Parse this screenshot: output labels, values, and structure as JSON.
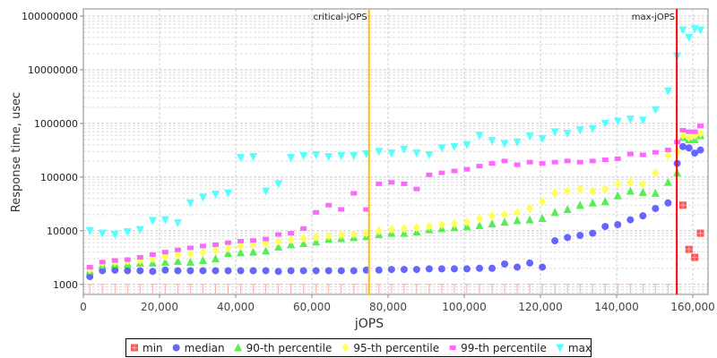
{
  "chart_data": {
    "type": "scatter",
    "title": "",
    "xlabel": "jOPS",
    "ylabel": "Response time, usec",
    "xscale": "linear",
    "yscale": "log",
    "xlim": [
      0,
      164000
    ],
    "ylim": [
      650,
      136000000
    ],
    "x_ticks": [
      0,
      20000,
      40000,
      60000,
      80000,
      100000,
      120000,
      140000,
      160000
    ],
    "x_tick_labels": [
      "0",
      "20,000",
      "40,000",
      "60,000",
      "80,000",
      "100,000",
      "120,000",
      "140,000",
      "160,000"
    ],
    "y_ticks": [
      1000,
      10000,
      100000,
      1000000,
      10000000,
      100000000
    ],
    "y_tick_labels": [
      "1000",
      "10000",
      "100000",
      "1000000",
      "10000000",
      "100000000"
    ],
    "grid": true,
    "legend_position": "bottom",
    "annotations": [
      {
        "label": "critical-jOPS",
        "x": 75000,
        "color": "#ffc000"
      },
      {
        "label": "max-jOPS",
        "x": 155800,
        "color": "#ff0000"
      }
    ],
    "x": [
      1700,
      5000,
      8300,
      11600,
      14900,
      18200,
      21500,
      24800,
      28100,
      31400,
      34700,
      38000,
      41300,
      44600,
      47900,
      51200,
      54500,
      57800,
      61100,
      64400,
      67700,
      71000,
      74300,
      77600,
      80900,
      84200,
      87500,
      90800,
      94100,
      97400,
      100700,
      104000,
      107300,
      110600,
      113900,
      117200,
      120500,
      123800,
      127100,
      130400,
      133700,
      137000,
      140300,
      143600,
      146900,
      150200,
      153500,
      155900,
      157400,
      159000,
      160500,
      162000
    ],
    "series": [
      {
        "name": "min",
        "marker": "square-plus",
        "color": "#ff5555",
        "values": [
          1000,
          1000,
          1000,
          1000,
          1000,
          1000,
          1000,
          1000,
          1000,
          1000,
          1000,
          1000,
          1000,
          1000,
          1000,
          1000,
          1000,
          1000,
          1000,
          1000,
          1000,
          1000,
          1000,
          1000,
          1000,
          1000,
          1000,
          1000,
          1000,
          1000,
          1000,
          1000,
          1000,
          1000,
          1000,
          1000,
          1000,
          1000,
          1000,
          1000,
          1000,
          1000,
          1000,
          1000,
          1000,
          1000,
          1000,
          1000,
          30000,
          4500,
          3200,
          9000
        ]
      },
      {
        "name": "median",
        "marker": "circle",
        "color": "#6666ff",
        "values": [
          1400,
          1800,
          1850,
          1800,
          1800,
          1750,
          1850,
          1800,
          1800,
          1800,
          1800,
          1800,
          1800,
          1800,
          1800,
          1750,
          1800,
          1800,
          1800,
          1800,
          1800,
          1800,
          1850,
          1850,
          1900,
          1900,
          1900,
          1950,
          1950,
          1950,
          1950,
          2000,
          2000,
          2400,
          2100,
          2500,
          2100,
          6500,
          7500,
          8200,
          9000,
          12000,
          13000,
          16000,
          19000,
          26000,
          33000,
          180000,
          370000,
          350000,
          280000,
          320000
        ]
      },
      {
        "name": "90-th percentile",
        "marker": "triangle-up",
        "color": "#55ee55",
        "values": [
          1800,
          2300,
          2400,
          2400,
          2500,
          2500,
          2600,
          2700,
          2600,
          2800,
          3000,
          3800,
          3900,
          4000,
          4200,
          5000,
          5500,
          5800,
          6200,
          7000,
          7200,
          7500,
          7800,
          8500,
          9000,
          9000,
          9500,
          10500,
          11000,
          11500,
          12000,
          12500,
          13500,
          14500,
          15500,
          16000,
          17000,
          22000,
          25000,
          30000,
          33000,
          35000,
          45000,
          55000,
          52000,
          50000,
          80000,
          120000,
          550000,
          500000,
          500000,
          600000
        ]
      },
      {
        "name": "95-th percentile",
        "marker": "diamond",
        "color": "#ffff55",
        "values": [
          1900,
          2500,
          2600,
          2700,
          2800,
          3000,
          3300,
          3500,
          3700,
          4000,
          4300,
          4700,
          5200,
          5500,
          5800,
          6300,
          6800,
          7200,
          7600,
          8000,
          8300,
          8600,
          9000,
          10000,
          10500,
          11000,
          11500,
          12000,
          13000,
          13500,
          14500,
          17000,
          19000,
          20000,
          22000,
          26000,
          35000,
          50000,
          55000,
          60000,
          55000,
          60000,
          75000,
          80000,
          75000,
          120000,
          250000,
          300000,
          600000,
          550000,
          600000,
          650000
        ]
      },
      {
        "name": "99-th percentile",
        "marker": "square",
        "color": "#ff66ff",
        "values": [
          2100,
          2600,
          2800,
          2900,
          3200,
          3600,
          4000,
          4400,
          4800,
          5200,
          5500,
          6000,
          6400,
          6600,
          7000,
          8500,
          9000,
          11000,
          22000,
          30000,
          25000,
          50000,
          25000,
          75000,
          80000,
          75000,
          60000,
          110000,
          120000,
          130000,
          140000,
          160000,
          180000,
          200000,
          170000,
          190000,
          180000,
          190000,
          200000,
          190000,
          200000,
          210000,
          220000,
          270000,
          260000,
          290000,
          320000,
          450000,
          750000,
          700000,
          700000,
          900000
        ]
      },
      {
        "name": "max",
        "marker": "triangle-down",
        "color": "#55ffff",
        "values": [
          10000,
          9000,
          8500,
          9500,
          10500,
          15500,
          16000,
          14000,
          33000,
          42000,
          48000,
          50000,
          230000,
          240000,
          55000,
          75000,
          230000,
          250000,
          260000,
          240000,
          250000,
          250000,
          270000,
          300000,
          280000,
          330000,
          280000,
          260000,
          350000,
          370000,
          400000,
          600000,
          480000,
          420000,
          450000,
          580000,
          520000,
          700000,
          650000,
          750000,
          800000,
          1000000,
          1100000,
          1200000,
          1150000,
          1800000,
          4000000,
          18000000,
          55000000,
          40000000,
          58000000,
          55000000
        ]
      }
    ]
  }
}
